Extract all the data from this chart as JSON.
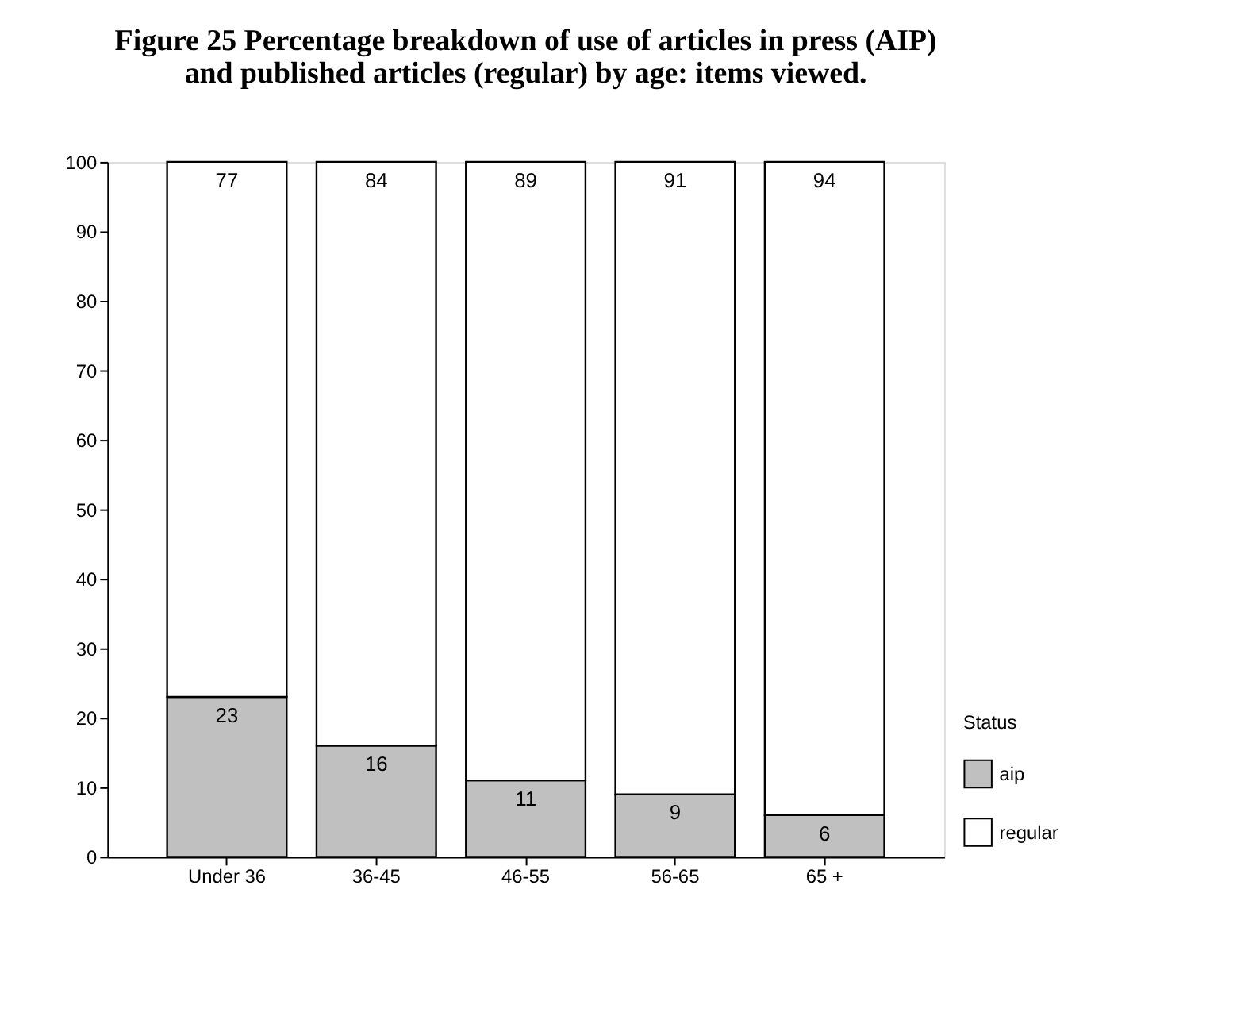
{
  "chart_data": {
    "type": "bar",
    "title": [
      "Figure 25 Percentage breakdown of use of articles in press (AIP)",
      "and published articles (regular) by age: items viewed."
    ],
    "categories": [
      "Under 36",
      "36-45",
      "46-55",
      "56-65",
      "65 +"
    ],
    "stacked": true,
    "series": [
      {
        "name": "aip",
        "color": "#c0c0c0",
        "values": [
          23,
          16,
          11,
          9,
          6
        ]
      },
      {
        "name": "regular",
        "color": "#ffffff",
        "values": [
          77,
          84,
          89,
          91,
          94
        ]
      }
    ],
    "legend_title": "Status",
    "legend": "bottom right",
    "ylim": [
      0,
      100
    ],
    "yticks": [
      0,
      10,
      20,
      30,
      40,
      50,
      60,
      70,
      80,
      90,
      100
    ],
    "data_labels": true,
    "grid": false
  }
}
